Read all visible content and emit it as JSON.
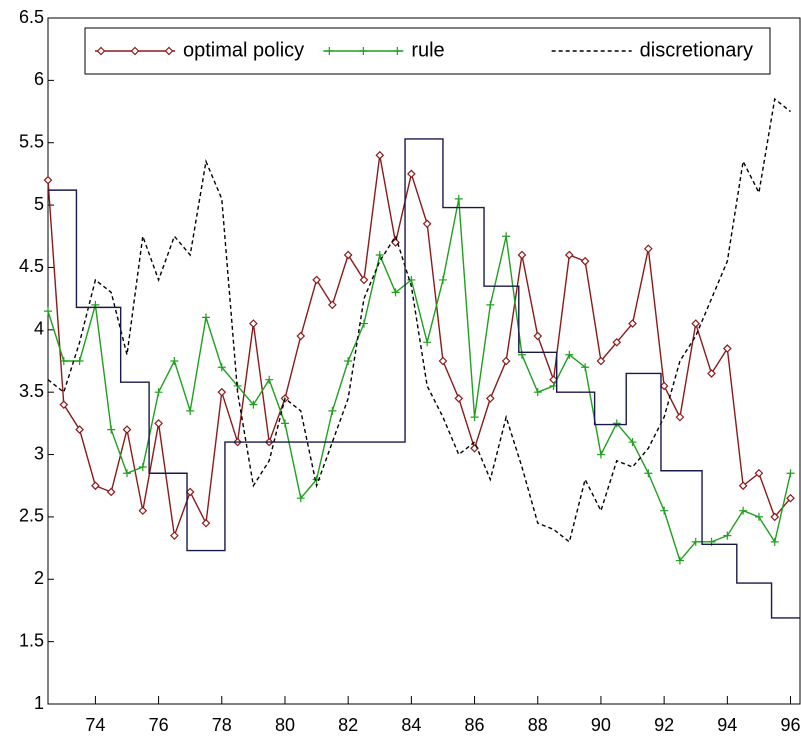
{
  "chart_data": {
    "type": "line",
    "xlim": [
      72.5,
      96.3
    ],
    "xticks": [
      74,
      76,
      78,
      80,
      82,
      84,
      86,
      88,
      90,
      92,
      94,
      96
    ],
    "ylim": [
      1,
      6.5
    ],
    "yticks": [
      1,
      1.5,
      2,
      2.5,
      3,
      3.5,
      4,
      4.5,
      5,
      5.5,
      6,
      6.5
    ],
    "legend": "upper center",
    "x": [
      72.5,
      73,
      73.5,
      74,
      74.5,
      75,
      75.5,
      76,
      76.5,
      77,
      77.5,
      78,
      78.5,
      79,
      79.5,
      80,
      80.5,
      81,
      81.5,
      82,
      82.5,
      83,
      83.5,
      84,
      84.5,
      85,
      85.5,
      86,
      86.5,
      87,
      87.5,
      88,
      88.5,
      89,
      89.5,
      90,
      90.5,
      91,
      91.5,
      92,
      92.5,
      93,
      93.5,
      94,
      94.5,
      95,
      95.5,
      96
    ],
    "series": [
      {
        "name": "optimal policy",
        "color": "#8b1a1a",
        "marker": "diamond",
        "dash": false,
        "values": [
          5.2,
          3.4,
          3.2,
          2.75,
          2.7,
          3.2,
          2.55,
          3.25,
          2.35,
          2.7,
          2.45,
          3.5,
          3.1,
          4.05,
          3.1,
          3.45,
          3.95,
          4.4,
          4.2,
          4.6,
          4.4,
          5.4,
          4.7,
          5.25,
          4.85,
          3.75,
          3.45,
          3.05,
          3.45,
          3.75,
          4.6,
          3.95,
          3.6,
          4.6,
          4.55,
          3.75,
          3.9,
          4.05,
          4.65,
          3.55,
          3.3,
          4.05,
          3.65,
          3.85,
          2.75,
          2.85,
          2.5,
          2.65
        ]
      },
      {
        "name": "rule",
        "color": "#1fa01f",
        "marker": "plus",
        "dash": false,
        "values": [
          4.15,
          3.75,
          3.75,
          4.2,
          3.2,
          2.85,
          2.9,
          3.5,
          3.75,
          3.35,
          4.1,
          3.7,
          3.55,
          3.4,
          3.6,
          3.25,
          2.65,
          2.8,
          3.35,
          3.75,
          4.05,
          4.6,
          4.3,
          4.4,
          3.9,
          4.4,
          5.05,
          3.3,
          4.2,
          4.75,
          3.8,
          3.5,
          3.55,
          3.8,
          3.7,
          3.0,
          3.25,
          3.1,
          2.85,
          2.55,
          2.15,
          2.3,
          2.3,
          2.35,
          2.55,
          2.5,
          2.3,
          2.85
        ]
      },
      {
        "name": "discretionary",
        "color": "#000000",
        "marker": "none",
        "dash": true,
        "values": [
          3.6,
          3.5,
          3.9,
          4.4,
          4.3,
          3.8,
          4.75,
          4.4,
          4.75,
          4.6,
          5.35,
          5.05,
          3.5,
          2.75,
          2.95,
          3.45,
          3.35,
          2.75,
          3.1,
          3.45,
          4.25,
          4.55,
          4.75,
          4.35,
          3.55,
          3.3,
          3.0,
          3.1,
          2.8,
          3.3,
          2.9,
          2.45,
          2.4,
          2.3,
          2.8,
          2.55,
          2.95,
          2.9,
          3.05,
          3.3,
          3.75,
          3.95,
          4.25,
          4.55,
          5.35,
          5.1,
          5.85,
          5.75
        ]
      },
      {
        "color": "#1a1a4a",
        "marker": "none",
        "dash": false,
        "x": [
          72.5,
          73.4,
          73.4,
          74.8,
          74.8,
          75.7,
          75.7,
          76.9,
          76.9,
          78.1,
          78.1,
          83.8,
          83.8,
          85.0,
          85.0,
          86.3,
          86.3,
          87.4,
          87.4,
          88.6,
          88.6,
          89.8,
          89.8,
          90.8,
          90.8,
          91.9,
          91.9,
          93.2,
          93.2,
          94.3,
          94.3,
          95.4,
          95.4,
          96.3
        ],
        "values": [
          5.12,
          5.12,
          4.18,
          4.18,
          3.58,
          3.58,
          2.85,
          2.85,
          2.23,
          2.23,
          3.1,
          3.1,
          5.53,
          5.53,
          4.98,
          4.98,
          4.35,
          4.35,
          3.82,
          3.82,
          3.5,
          3.5,
          3.24,
          3.24,
          3.65,
          3.65,
          2.87,
          2.87,
          2.28,
          2.28,
          1.97,
          1.97,
          1.69,
          1.69
        ]
      }
    ]
  }
}
